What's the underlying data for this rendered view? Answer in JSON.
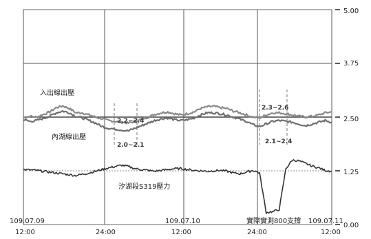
{
  "chart_data": {
    "type": "line",
    "ylim": [
      0,
      5
    ],
    "y_ticks": [
      "0.00",
      "1.25",
      "2.50",
      "3.75",
      "5.00"
    ],
    "y_axis_side": "right",
    "x_tick_labels": [
      {
        "date": "109.07.09",
        "time": "12:00"
      },
      {
        "date": "",
        "time": "24:00"
      },
      {
        "date": "109.07.10",
        "time": "12:00"
      },
      {
        "date": "",
        "time": "24:00"
      },
      {
        "date": "109.07.11",
        "time": "12:00"
      }
    ],
    "grid": true,
    "reference_line": 2.5,
    "series": [
      {
        "name": "入出線出壓",
        "color": "#8a8a8a",
        "values": [
          2.48,
          2.52,
          2.5,
          2.56,
          2.62,
          2.72,
          2.76,
          2.7,
          2.6,
          2.6,
          2.55,
          2.5,
          2.46,
          2.42,
          2.4,
          2.38,
          2.36,
          2.4,
          2.45,
          2.5,
          2.56,
          2.6,
          2.62,
          2.58,
          2.55,
          2.58,
          2.62,
          2.7,
          2.74,
          2.75,
          2.72,
          2.7,
          2.64,
          2.6,
          2.55,
          2.5,
          2.48,
          2.55,
          2.6,
          2.6,
          2.58,
          2.55,
          2.52,
          2.5,
          2.52,
          2.55,
          2.6,
          2.62
        ]
      },
      {
        "name": "內湖線出壓",
        "color": "#6f6f6f",
        "values": [
          2.44,
          2.4,
          2.42,
          2.47,
          2.52,
          2.6,
          2.64,
          2.6,
          2.52,
          2.48,
          2.42,
          2.36,
          2.28,
          2.24,
          2.22,
          2.2,
          2.18,
          2.24,
          2.3,
          2.36,
          2.42,
          2.46,
          2.48,
          2.44,
          2.42,
          2.44,
          2.48,
          2.55,
          2.6,
          2.6,
          2.58,
          2.55,
          2.5,
          2.45,
          2.4,
          2.32,
          2.28,
          2.34,
          2.4,
          2.42,
          2.4,
          2.38,
          2.34,
          2.3,
          2.34,
          2.38,
          2.42,
          2.38
        ]
      },
      {
        "name": "汐湖段S319壓力",
        "color": "#333333",
        "values": [
          1.28,
          1.27,
          1.26,
          1.24,
          1.22,
          1.2,
          1.18,
          1.16,
          1.14,
          1.17,
          1.2,
          1.24,
          1.28,
          1.32,
          1.35,
          1.38,
          1.35,
          1.3,
          1.28,
          1.26,
          1.24,
          1.26,
          1.28,
          1.3,
          1.3,
          1.28,
          1.26,
          1.25,
          1.24,
          1.25,
          1.26,
          1.24,
          1.2,
          1.18,
          1.22,
          1.26,
          1.2,
          0.28,
          0.3,
          0.35,
          1.3,
          1.5,
          1.48,
          1.42,
          1.36,
          1.32,
          1.26,
          1.24
        ]
      }
    ],
    "annotations": [
      {
        "text": "2.2~2.4"
      },
      {
        "text": "2.0~2.1"
      },
      {
        "text": "2.3~2.6"
      },
      {
        "text": "2.1~2.4"
      },
      {
        "text": "實際實測800支撐"
      }
    ]
  }
}
